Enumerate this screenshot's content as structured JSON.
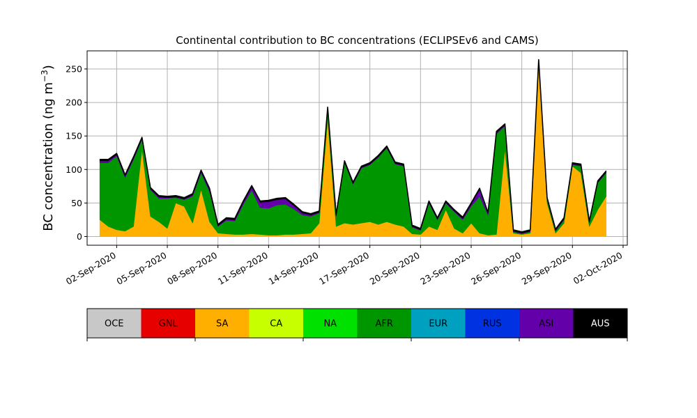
{
  "chart_data": {
    "type": "area",
    "stacked": true,
    "title": "Continental contribution to BC concentrations (ECLIPSEv6 and CAMS)",
    "ylabel": "BC concentration (ng m",
    "ylabel_sup": "−3",
    "ylabel_close": ")",
    "xlim": [
      "2020-08-31T06:00",
      "2020-10-02T06:00"
    ],
    "ylim": [
      -13,
      277
    ],
    "yticks": [
      0,
      50,
      100,
      150,
      200,
      250
    ],
    "xticks": [
      "2020-09-02",
      "2020-09-05",
      "2020-09-08",
      "2020-09-11",
      "2020-09-14",
      "2020-09-17",
      "2020-09-20",
      "2020-09-23",
      "2020-09-26",
      "2020-09-29",
      "2020-10-02"
    ],
    "xtick_labels": [
      "02-Sep-2020",
      "05-Sep-2020",
      "08-Sep-2020",
      "11-Sep-2020",
      "14-Sep-2020",
      "17-Sep-2020",
      "20-Sep-2020",
      "23-Sep-2020",
      "26-Sep-2020",
      "29-Sep-2020",
      "02-Oct-2020"
    ],
    "grid": true,
    "series_order": [
      "SA",
      "AFR",
      "ASI",
      "AUS"
    ],
    "x": [
      "2020-09-01T00:00",
      "2020-09-01T12:00",
      "2020-09-02T00:00",
      "2020-09-02T12:00",
      "2020-09-03T00:00",
      "2020-09-03T12:00",
      "2020-09-04T00:00",
      "2020-09-04T12:00",
      "2020-09-05T00:00",
      "2020-09-05T12:00",
      "2020-09-06T00:00",
      "2020-09-06T12:00",
      "2020-09-07T00:00",
      "2020-09-07T12:00",
      "2020-09-08T00:00",
      "2020-09-08T12:00",
      "2020-09-09T00:00",
      "2020-09-09T12:00",
      "2020-09-10T00:00",
      "2020-09-10T12:00",
      "2020-09-11T00:00",
      "2020-09-11T12:00",
      "2020-09-12T00:00",
      "2020-09-12T12:00",
      "2020-09-13T00:00",
      "2020-09-13T12:00",
      "2020-09-14T00:00",
      "2020-09-14T12:00",
      "2020-09-15T00:00",
      "2020-09-15T12:00",
      "2020-09-16T00:00",
      "2020-09-16T12:00",
      "2020-09-17T00:00",
      "2020-09-17T12:00",
      "2020-09-18T00:00",
      "2020-09-18T12:00",
      "2020-09-19T00:00",
      "2020-09-19T12:00",
      "2020-09-20T00:00",
      "2020-09-20T12:00",
      "2020-09-21T00:00",
      "2020-09-21T12:00",
      "2020-09-22T00:00",
      "2020-09-22T12:00",
      "2020-09-23T00:00",
      "2020-09-23T12:00",
      "2020-09-24T00:00",
      "2020-09-24T12:00",
      "2020-09-25T00:00",
      "2020-09-25T12:00",
      "2020-09-26T00:00",
      "2020-09-26T12:00",
      "2020-09-27T00:00",
      "2020-09-27T12:00",
      "2020-09-28T00:00",
      "2020-09-28T12:00",
      "2020-09-29T00:00",
      "2020-09-29T12:00",
      "2020-09-30T00:00",
      "2020-09-30T12:00",
      "2020-10-01T00:00"
    ],
    "series": [
      {
        "name": "SA",
        "color": "#ffaf00",
        "values": [
          25,
          15,
          10,
          8,
          15,
          130,
          30,
          22,
          12,
          50,
          45,
          20,
          70,
          22,
          5,
          4,
          3,
          3,
          4,
          3,
          2,
          2,
          3,
          3,
          4,
          5,
          20,
          175,
          15,
          20,
          18,
          20,
          22,
          18,
          22,
          18,
          15,
          4,
          3,
          15,
          10,
          40,
          12,
          5,
          20,
          5,
          2,
          3,
          130,
          5,
          3,
          5,
          260,
          50,
          5,
          20,
          105,
          95,
          15,
          40,
          60
        ]
      },
      {
        "name": "AFR",
        "color": "#009600",
        "values": [
          85,
          95,
          110,
          80,
          100,
          15,
          40,
          35,
          45,
          8,
          10,
          40,
          25,
          45,
          10,
          20,
          20,
          45,
          65,
          40,
          40,
          45,
          45,
          38,
          28,
          25,
          15,
          15,
          15,
          90,
          60,
          82,
          85,
          100,
          110,
          90,
          90,
          10,
          6,
          35,
          15,
          10,
          25,
          20,
          25,
          55,
          30,
          150,
          35,
          2,
          1,
          2,
          1,
          5,
          3,
          5,
          2,
          10,
          5,
          40,
          35
        ]
      },
      {
        "name": "ASI",
        "color": "#6400aa",
        "values": [
          3,
          3,
          2,
          2,
          2,
          1,
          1,
          2,
          1,
          1,
          1,
          2,
          2,
          3,
          1,
          2,
          2,
          3,
          5,
          8,
          10,
          8,
          8,
          5,
          3,
          2,
          1,
          1,
          1,
          1,
          1,
          1,
          1,
          1,
          1,
          1,
          1,
          1,
          1,
          1,
          1,
          1,
          1,
          2,
          3,
          10,
          2,
          2,
          1,
          1,
          1,
          1,
          1,
          1,
          1,
          1,
          1,
          1,
          1,
          1,
          1
        ]
      },
      {
        "name": "AUS",
        "color": "#000000",
        "values": [
          2,
          2,
          2,
          2,
          2,
          2,
          2,
          2,
          2,
          2,
          2,
          2,
          2,
          2,
          2,
          2,
          2,
          2,
          2,
          2,
          2,
          2,
          2,
          2,
          2,
          2,
          2,
          2,
          2,
          2,
          2,
          2,
          2,
          2,
          2,
          2,
          2,
          2,
          2,
          2,
          2,
          2,
          2,
          2,
          2,
          2,
          2,
          2,
          2,
          2,
          2,
          2,
          2,
          2,
          2,
          2,
          2,
          2,
          2,
          2,
          2
        ]
      }
    ],
    "legend": {
      "placement": "bottom",
      "entries": [
        {
          "name": "OCE",
          "color": "#c8c8c8"
        },
        {
          "name": "GNL",
          "color": "#e60000"
        },
        {
          "name": "SA",
          "color": "#ffaf00"
        },
        {
          "name": "CA",
          "color": "#c8ff00"
        },
        {
          "name": "NA",
          "color": "#00e100"
        },
        {
          "name": "AFR",
          "color": "#009600"
        },
        {
          "name": "EUR",
          "color": "#00a0c0"
        },
        {
          "name": "RUS",
          "color": "#0032e1"
        },
        {
          "name": "ASI",
          "color": "#6400aa"
        },
        {
          "name": "AUS",
          "color": "#000000"
        }
      ]
    }
  }
}
